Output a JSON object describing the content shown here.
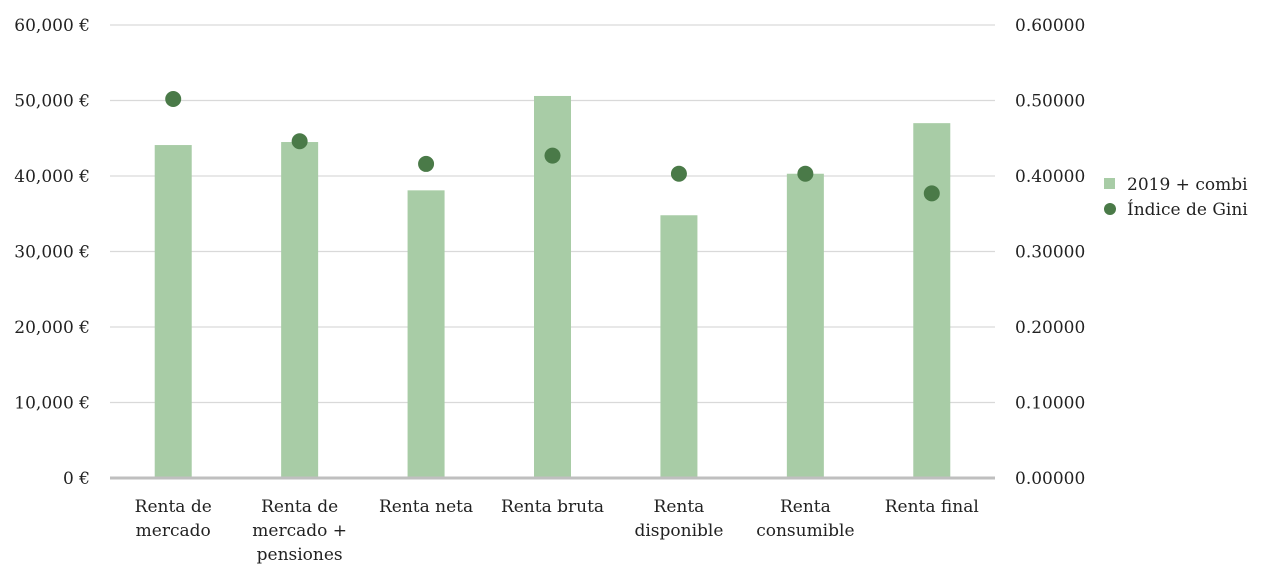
{
  "chart_data": {
    "type": "bar",
    "categories": [
      [
        "Renta de",
        "mercado"
      ],
      [
        "Renta de",
        "mercado +",
        "pensiones"
      ],
      [
        "Renta neta"
      ],
      [
        "Renta bruta"
      ],
      [
        "Renta",
        "disponible"
      ],
      [
        "Renta",
        "consumible"
      ],
      [
        "Renta final"
      ]
    ],
    "series": [
      {
        "name": "2019 + combi",
        "type": "bar",
        "axis": "left",
        "color": "#a8cca6",
        "values": [
          44100,
          44500,
          38100,
          50600,
          34800,
          40300,
          47000
        ]
      },
      {
        "name": "Índice de Gini",
        "type": "scatter",
        "axis": "right",
        "color": "#4a7a48",
        "values": [
          0.502,
          0.446,
          0.416,
          0.427,
          0.403,
          0.403,
          0.377
        ]
      }
    ],
    "y_left": {
      "ylim": [
        0,
        60000
      ],
      "tick_labels": [
        "0 €",
        "10,000 €",
        "20,000 €",
        "30,000 €",
        "40,000 €",
        "50,000 €",
        "60,000 €"
      ]
    },
    "y_right": {
      "ylim": [
        0,
        0.6
      ],
      "tick_labels": [
        "0.00000",
        "0.10000",
        "0.20000",
        "0.30000",
        "0.40000",
        "0.50000",
        "0.60000"
      ]
    },
    "grid": true,
    "legend_position": "right"
  }
}
